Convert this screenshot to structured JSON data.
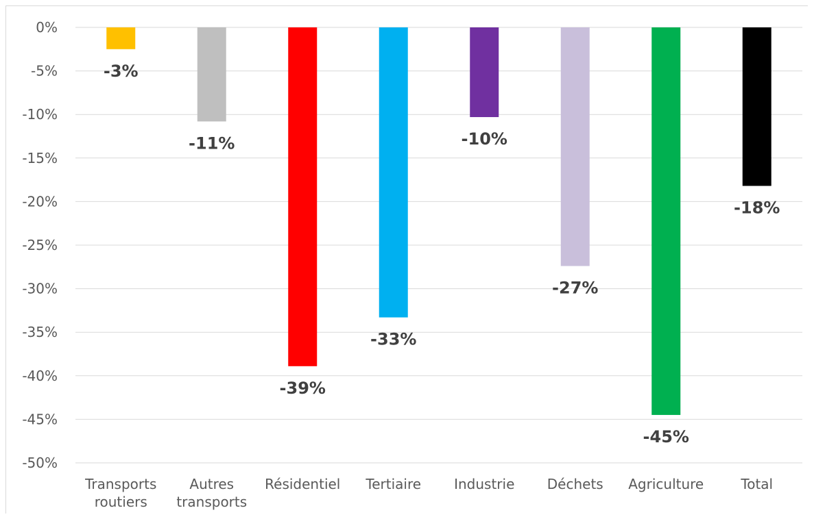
{
  "chart_data": {
    "type": "bar",
    "title": "",
    "xlabel": "",
    "ylabel": "",
    "ylim": [
      -50,
      0
    ],
    "yticks": [
      0,
      -5,
      -10,
      -15,
      -20,
      -25,
      -30,
      -35,
      -40,
      -45,
      -50
    ],
    "ytick_labels": [
      "0%",
      "-5%",
      "-10%",
      "-15%",
      "-20%",
      "-25%",
      "-30%",
      "-35%",
      "-40%",
      "-45%",
      "-50%"
    ],
    "grid": true,
    "legend": "none",
    "categories": [
      [
        "Transports",
        "routiers"
      ],
      [
        "Autres",
        "transports"
      ],
      [
        "Résidentiel"
      ],
      [
        "Tertiaire"
      ],
      [
        "Industrie"
      ],
      [
        "Déchets"
      ],
      [
        "Agriculture"
      ],
      [
        "Total"
      ]
    ],
    "values": [
      -2.5,
      -10.8,
      -38.9,
      -33.3,
      -10.3,
      -27.4,
      -44.5,
      -18.2
    ],
    "data_labels": [
      "-3%",
      "-11%",
      "-39%",
      "-33%",
      "-10%",
      "-27%",
      "-45%",
      "-18%"
    ],
    "colors": [
      "#FFC000",
      "#BFBFBF",
      "#FF0000",
      "#00B0F0",
      "#7030A0",
      "#C9BFDB",
      "#00B050",
      "#000000"
    ]
  }
}
